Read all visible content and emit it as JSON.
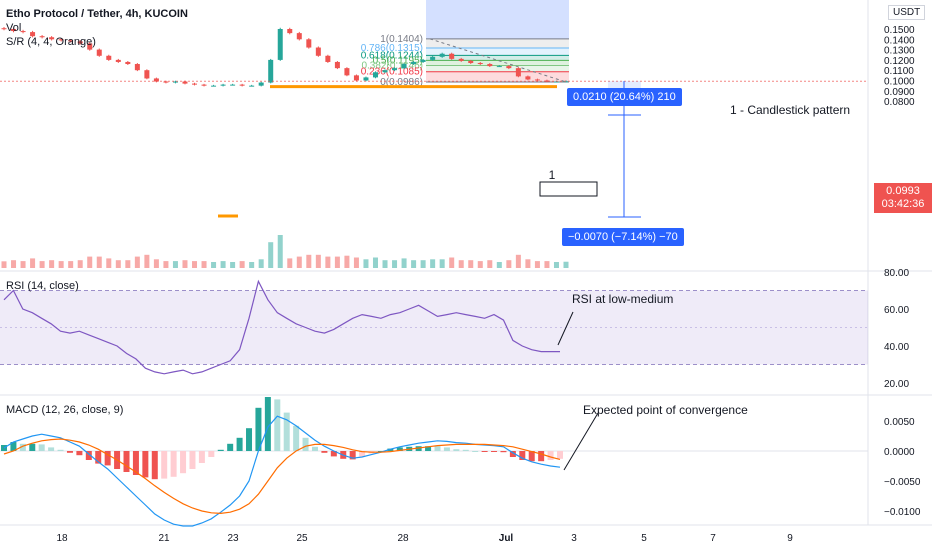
{
  "main": {
    "legend": {
      "title": "Etho Protocol / Tether, 4h, KUCOIN",
      "vol": "Vol",
      "sr": "S/R (4, 4, Orange)"
    },
    "currency_badge": "USDT",
    "price_axis_ticks": [
      "0.1500",
      "0.1400",
      "0.1300",
      "0.1200",
      "0.1100",
      "0.1000",
      "0.0900",
      "0.0800"
    ],
    "last_price": "0.0993",
    "countdown": "03:42:36",
    "fib_levels": [
      {
        "label": "1(0.1404)",
        "price": 0.1404,
        "color": "#787b86"
      },
      {
        "label": "0.786(0.1315)",
        "price": 0.1315,
        "color": "#64b5f6"
      },
      {
        "label": "0.618(0.1244)",
        "price": 0.1244,
        "color": "#089981"
      },
      {
        "label": "0.5(0.1195)",
        "price": 0.1195,
        "color": "#4caf50"
      },
      {
        "label": "0.382(0.1146)",
        "price": 0.1146,
        "color": "#81c784"
      },
      {
        "label": "0.236(0.1085)",
        "price": 0.1085,
        "color": "#f23645"
      },
      {
        "label": "0(0.0986)",
        "price": 0.0986,
        "color": "#787b86"
      }
    ],
    "measure_up": "0.0210 (20.64%) 210",
    "measure_down": "−0.0070 (−7.14%) −70",
    "pattern_marker": "1",
    "annotation": "1 - Candlestick pattern",
    "support_level": 0.0941,
    "colors": {
      "up": "#26a69a",
      "down": "#ef5350",
      "support": "#ff9800",
      "measure": "#2962ff"
    }
  },
  "rsi": {
    "legend": "RSI (14, close)",
    "ticks": [
      "80.00",
      "60.00",
      "40.00",
      "20.00"
    ],
    "annotation": "RSI at low-medium",
    "band": [
      30,
      70
    ]
  },
  "macd": {
    "legend": "MACD (12, 26, close, 9)",
    "ticks": [
      "0.0050",
      "0.0000",
      "−0.0050",
      "−0.0100"
    ],
    "annotation": "Expected point of convergence"
  },
  "time_axis": [
    "18",
    "21",
    "23",
    "25",
    "28",
    "Jul",
    "3",
    "5",
    "7",
    "9"
  ],
  "chart_data": [
    {
      "type": "candlestick",
      "title": "Etho Protocol / Tether, 4h, KUCOIN",
      "y_ticks": [
        0.15,
        0.14,
        0.13,
        0.12,
        0.11,
        0.1,
        0.09,
        0.08
      ],
      "close_series": [
        0.15,
        0.148,
        0.147,
        0.143,
        0.142,
        0.14,
        0.139,
        0.138,
        0.136,
        0.13,
        0.124,
        0.12,
        0.118,
        0.116,
        0.11,
        0.102,
        0.099,
        0.098,
        0.099,
        0.097,
        0.096,
        0.095,
        0.095,
        0.096,
        0.096,
        0.095,
        0.095,
        0.098,
        0.12,
        0.15,
        0.146,
        0.14,
        0.132,
        0.124,
        0.118,
        0.112,
        0.105,
        0.1,
        0.103,
        0.108,
        0.11,
        0.112,
        0.116,
        0.118,
        0.12,
        0.123,
        0.126,
        0.121,
        0.119,
        0.117,
        0.116,
        0.114,
        0.114,
        0.112,
        0.104,
        0.101,
        0.1,
        0.099,
        0.099,
        0.0993
      ],
      "last": 0.0993,
      "fib_retracement": [
        1.0,
        0.786,
        0.618,
        0.5,
        0.382,
        0.236,
        0.0
      ],
      "fib_prices": [
        0.1404,
        0.1315,
        0.1244,
        0.1195,
        0.1146,
        0.1085,
        0.0986
      ]
    },
    {
      "type": "line",
      "title": "RSI (14, close)",
      "ylim": [
        20,
        80
      ],
      "y_ticks": [
        80,
        60,
        40,
        20
      ],
      "values": [
        65,
        70,
        60,
        58,
        55,
        52,
        48,
        47,
        48,
        46,
        44,
        42,
        40,
        36,
        33,
        28,
        26,
        25,
        26,
        27,
        25,
        26,
        28,
        30,
        32,
        38,
        55,
        75,
        65,
        58,
        55,
        52,
        50,
        48,
        47,
        49,
        52,
        55,
        57,
        56,
        55,
        57,
        58,
        60,
        62,
        59,
        56,
        57,
        58,
        57,
        56,
        55,
        57,
        54,
        43,
        40,
        38,
        37,
        37,
        37
      ]
    },
    {
      "type": "line",
      "title": "MACD (12, 26, close, 9)",
      "y_ticks": [
        0.005,
        0,
        -0.005,
        -0.01
      ],
      "series": [
        {
          "values": [
            0.0005,
            0.0015,
            0.002,
            0.0025,
            0.0028,
            0.0025,
            0.0022,
            0.0015,
            0.0008,
            -0.0005,
            -0.0018,
            -0.003,
            -0.0045,
            -0.006,
            -0.0075,
            -0.009,
            -0.0105,
            -0.0115,
            -0.0122,
            -0.0125,
            -0.0125,
            -0.012,
            -0.0113,
            -0.0102,
            -0.009,
            -0.0075,
            -0.005,
            0.0,
            0.004,
            0.0058,
            0.0052,
            0.0042,
            0.003,
            0.0018,
            0.0008,
            0.0,
            -0.0007,
            -0.0012,
            -0.001,
            -0.0006,
            -0.0002,
            0.0003,
            0.0007,
            0.001,
            0.0013,
            0.0015,
            0.0017,
            0.0016,
            0.0014,
            0.0013,
            0.0011,
            0.001,
            0.0009,
            0.0007,
            -0.0003,
            -0.0012,
            -0.0018,
            -0.0022,
            -0.0025,
            -0.0027
          ]
        },
        {
          "values": [
            -0.0005,
            0.0,
            0.0008,
            0.0013,
            0.0017,
            0.0019,
            0.002,
            0.0018,
            0.0015,
            0.001,
            0.0003,
            -0.0006,
            -0.0015,
            -0.0025,
            -0.0035,
            -0.0046,
            -0.0058,
            -0.0069,
            -0.0079,
            -0.0088,
            -0.0095,
            -0.01,
            -0.0103,
            -0.0104,
            -0.0102,
            -0.0097,
            -0.0088,
            -0.0072,
            -0.005,
            -0.0028,
            -0.0012,
            0.0,
            0.0008,
            0.0011,
            0.0011,
            0.0009,
            0.0006,
            0.0002,
            -0.0001,
            -0.0002,
            -0.0002,
            -0.0001,
            0.0001,
            0.0003,
            0.0005,
            0.0007,
            0.0009,
            0.001,
            0.0011,
            0.0011,
            0.0011,
            0.0011,
            0.001,
            0.0009,
            0.0007,
            0.0003,
            -0.0001,
            -0.0005,
            -0.001,
            -0.0014
          ]
        }
      ]
    }
  ]
}
